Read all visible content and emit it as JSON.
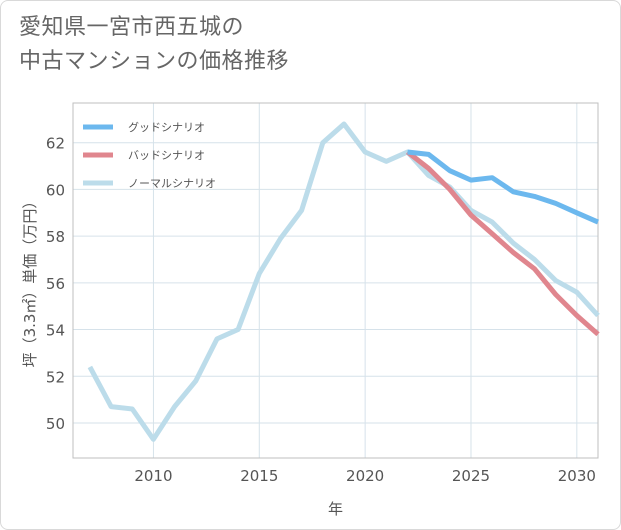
{
  "title_line1": "愛知県一宮市西五城の",
  "title_line2": "中古マンションの価格推移",
  "chart_data": {
    "type": "line",
    "xlabel": "年",
    "ylabel": "坪（3.3㎡）単価（万円）",
    "xlim": [
      2006.2,
      2031
    ],
    "ylim": [
      48.5,
      63.7
    ],
    "x_ticks": [
      2010,
      2015,
      2020,
      2025,
      2030
    ],
    "y_ticks": [
      50,
      52,
      54,
      56,
      58,
      60,
      62
    ],
    "grid": true,
    "legend_position": "top-left",
    "series": [
      {
        "name": "グッドシナリオ",
        "color": "#6cb8ee",
        "x": [
          2022,
          2023,
          2024,
          2025,
          2026,
          2027,
          2028,
          2029,
          2030,
          2031
        ],
        "y": [
          61.6,
          61.5,
          60.8,
          60.4,
          60.5,
          59.9,
          59.7,
          59.4,
          59.0,
          58.6
        ]
      },
      {
        "name": "バッドシナリオ",
        "color": "#e0868e",
        "x": [
          2022,
          2023,
          2024,
          2025,
          2026,
          2027,
          2028,
          2029,
          2030,
          2031
        ],
        "y": [
          61.6,
          60.9,
          60.0,
          58.9,
          58.1,
          57.3,
          56.6,
          55.5,
          54.6,
          53.8
        ]
      },
      {
        "name": "ノーマルシナリオ",
        "color": "#bcdcea",
        "x": [
          2007,
          2008,
          2009,
          2010,
          2011,
          2012,
          2013,
          2014,
          2015,
          2016,
          2017,
          2018,
          2019,
          2020,
          2021,
          2022,
          2023,
          2024,
          2025,
          2026,
          2027,
          2028,
          2029,
          2030,
          2031
        ],
        "y": [
          52.4,
          50.7,
          50.6,
          49.3,
          50.7,
          51.8,
          53.6,
          54.0,
          56.4,
          57.9,
          59.1,
          62.0,
          62.8,
          61.6,
          61.2,
          61.6,
          60.6,
          60.1,
          59.1,
          58.6,
          57.7,
          57.0,
          56.1,
          55.6,
          54.6
        ]
      }
    ]
  }
}
